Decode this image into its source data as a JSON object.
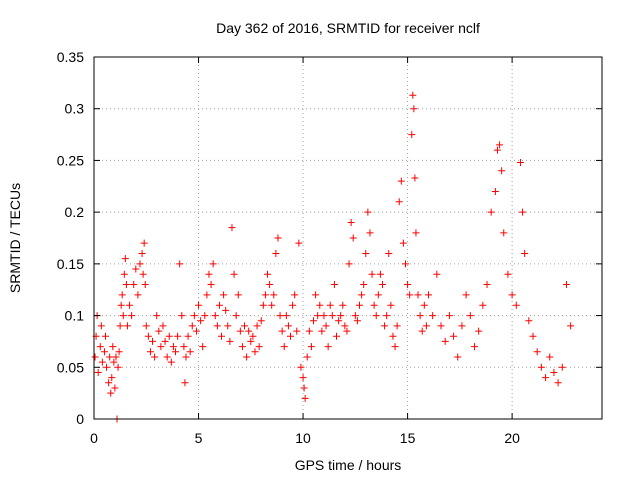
{
  "chart_data": {
    "type": "scatter",
    "title": "Day 362 of 2016, SRMTID for receiver nclf",
    "xlabel": "GPS time / hours",
    "ylabel": "SRMTID / TECUs",
    "xlim": [
      0,
      24.3
    ],
    "ylim": [
      0,
      0.35
    ],
    "x_ticks": [
      0,
      5,
      10,
      15,
      20
    ],
    "x_tick_labels": [
      "0",
      "5",
      "10",
      "15",
      "20"
    ],
    "y_ticks": [
      0,
      0.05,
      0.1,
      0.15,
      0.2,
      0.25,
      0.3,
      0.35
    ],
    "y_tick_labels": [
      "0",
      "0.05",
      "0.1",
      "0.15",
      "0.2",
      "0.25",
      "0.3",
      "0.35"
    ],
    "grid": true,
    "marker": "+",
    "color": "#ff0000",
    "series": [
      {
        "points": [
          [
            0.05,
            0.06
          ],
          [
            0.1,
            0.08
          ],
          [
            0.15,
            0.1
          ],
          [
            0.2,
            0.045
          ],
          [
            0.3,
            0.07
          ],
          [
            0.35,
            0.09
          ],
          [
            0.4,
            0.055
          ],
          [
            0.5,
            0.065
          ],
          [
            0.55,
            0.08
          ],
          [
            0.6,
            0.05
          ],
          [
            0.7,
            0.035
          ],
          [
            0.75,
            0.06
          ],
          [
            0.8,
            0.025
          ],
          [
            0.85,
            0.04
          ],
          [
            0.9,
            0.07
          ],
          [
            0.95,
            0.055
          ],
          [
            1.0,
            0.03
          ],
          [
            1.05,
            0.06
          ],
          [
            1.1,
            0.0
          ],
          [
            1.15,
            0.05
          ],
          [
            1.2,
            0.065
          ],
          [
            1.25,
            0.09
          ],
          [
            1.3,
            0.11
          ],
          [
            1.35,
            0.12
          ],
          [
            1.4,
            0.1
          ],
          [
            1.45,
            0.14
          ],
          [
            1.5,
            0.155
          ],
          [
            1.55,
            0.13
          ],
          [
            1.6,
            0.09
          ],
          [
            1.7,
            0.11
          ],
          [
            1.8,
            0.1
          ],
          [
            1.9,
            0.13
          ],
          [
            2.0,
            0.145
          ],
          [
            2.1,
            0.12
          ],
          [
            2.2,
            0.15
          ],
          [
            2.3,
            0.16
          ],
          [
            2.35,
            0.14
          ],
          [
            2.4,
            0.17
          ],
          [
            2.45,
            0.13
          ],
          [
            2.5,
            0.09
          ],
          [
            2.6,
            0.08
          ],
          [
            2.7,
            0.065
          ],
          [
            2.8,
            0.075
          ],
          [
            2.9,
            0.06
          ],
          [
            3.0,
            0.1
          ],
          [
            3.1,
            0.085
          ],
          [
            3.2,
            0.07
          ],
          [
            3.3,
            0.09
          ],
          [
            3.4,
            0.075
          ],
          [
            3.5,
            0.06
          ],
          [
            3.6,
            0.08
          ],
          [
            3.7,
            0.055
          ],
          [
            3.8,
            0.07
          ],
          [
            3.9,
            0.065
          ],
          [
            4.0,
            0.08
          ],
          [
            4.1,
            0.15
          ],
          [
            4.2,
            0.1
          ],
          [
            4.3,
            0.07
          ],
          [
            4.35,
            0.035
          ],
          [
            4.4,
            0.06
          ],
          [
            4.5,
            0.08
          ],
          [
            4.6,
            0.065
          ],
          [
            4.7,
            0.09
          ],
          [
            4.8,
            0.1
          ],
          [
            4.9,
            0.085
          ],
          [
            5.0,
            0.11
          ],
          [
            5.1,
            0.095
          ],
          [
            5.2,
            0.07
          ],
          [
            5.3,
            0.1
          ],
          [
            5.4,
            0.12
          ],
          [
            5.5,
            0.14
          ],
          [
            5.6,
            0.13
          ],
          [
            5.7,
            0.15
          ],
          [
            5.8,
            0.1
          ],
          [
            5.9,
            0.09
          ],
          [
            6.0,
            0.11
          ],
          [
            6.1,
            0.08
          ],
          [
            6.2,
            0.12
          ],
          [
            6.3,
            0.105
          ],
          [
            6.4,
            0.09
          ],
          [
            6.5,
            0.075
          ],
          [
            6.6,
            0.185
          ],
          [
            6.7,
            0.14
          ],
          [
            6.8,
            0.1
          ],
          [
            6.9,
            0.12
          ],
          [
            7.0,
            0.085
          ],
          [
            7.1,
            0.07
          ],
          [
            7.2,
            0.09
          ],
          [
            7.3,
            0.06
          ],
          [
            7.4,
            0.085
          ],
          [
            7.5,
            0.075
          ],
          [
            7.6,
            0.08
          ],
          [
            7.7,
            0.065
          ],
          [
            7.8,
            0.09
          ],
          [
            7.9,
            0.07
          ],
          [
            8.0,
            0.095
          ],
          [
            8.1,
            0.11
          ],
          [
            8.2,
            0.12
          ],
          [
            8.3,
            0.14
          ],
          [
            8.4,
            0.13
          ],
          [
            8.5,
            0.11
          ],
          [
            8.6,
            0.12
          ],
          [
            8.7,
            0.16
          ],
          [
            8.8,
            0.175
          ],
          [
            8.9,
            0.1
          ],
          [
            9.0,
            0.085
          ],
          [
            9.1,
            0.07
          ],
          [
            9.2,
            0.1
          ],
          [
            9.3,
            0.09
          ],
          [
            9.4,
            0.08
          ],
          [
            9.5,
            0.11
          ],
          [
            9.6,
            0.12
          ],
          [
            9.7,
            0.085
          ],
          [
            9.8,
            0.17
          ],
          [
            9.9,
            0.05
          ],
          [
            10.0,
            0.04
          ],
          [
            10.05,
            0.03
          ],
          [
            10.1,
            0.02
          ],
          [
            10.2,
            0.06
          ],
          [
            10.3,
            0.085
          ],
          [
            10.4,
            0.07
          ],
          [
            10.5,
            0.095
          ],
          [
            10.6,
            0.12
          ],
          [
            10.7,
            0.1
          ],
          [
            10.8,
            0.11
          ],
          [
            10.9,
            0.085
          ],
          [
            11.0,
            0.1
          ],
          [
            11.1,
            0.09
          ],
          [
            11.2,
            0.07
          ],
          [
            11.3,
            0.11
          ],
          [
            11.4,
            0.1
          ],
          [
            11.5,
            0.13
          ],
          [
            11.6,
            0.08
          ],
          [
            11.7,
            0.095
          ],
          [
            11.8,
            0.1
          ],
          [
            11.9,
            0.11
          ],
          [
            12.0,
            0.09
          ],
          [
            12.1,
            0.085
          ],
          [
            12.2,
            0.15
          ],
          [
            12.3,
            0.19
          ],
          [
            12.4,
            0.175
          ],
          [
            12.5,
            0.1
          ],
          [
            12.6,
            0.095
          ],
          [
            12.7,
            0.11
          ],
          [
            12.8,
            0.12
          ],
          [
            12.9,
            0.13
          ],
          [
            13.0,
            0.16
          ],
          [
            13.1,
            0.2
          ],
          [
            13.2,
            0.18
          ],
          [
            13.3,
            0.14
          ],
          [
            13.4,
            0.11
          ],
          [
            13.5,
            0.1
          ],
          [
            13.6,
            0.12
          ],
          [
            13.7,
            0.14
          ],
          [
            13.8,
            0.13
          ],
          [
            13.9,
            0.09
          ],
          [
            14.0,
            0.1
          ],
          [
            14.1,
            0.16
          ],
          [
            14.2,
            0.11
          ],
          [
            14.3,
            0.08
          ],
          [
            14.4,
            0.07
          ],
          [
            14.5,
            0.09
          ],
          [
            14.6,
            0.21
          ],
          [
            14.7,
            0.23
          ],
          [
            14.8,
            0.17
          ],
          [
            14.9,
            0.15
          ],
          [
            15.0,
            0.13
          ],
          [
            15.1,
            0.12
          ],
          [
            15.2,
            0.275
          ],
          [
            15.25,
            0.313
          ],
          [
            15.3,
            0.3
          ],
          [
            15.35,
            0.233
          ],
          [
            15.4,
            0.18
          ],
          [
            15.5,
            0.12
          ],
          [
            15.6,
            0.1
          ],
          [
            15.7,
            0.085
          ],
          [
            15.8,
            0.11
          ],
          [
            15.9,
            0.09
          ],
          [
            16.0,
            0.12
          ],
          [
            16.2,
            0.1
          ],
          [
            16.4,
            0.14
          ],
          [
            16.6,
            0.09
          ],
          [
            16.8,
            0.075
          ],
          [
            17.0,
            0.1
          ],
          [
            17.2,
            0.08
          ],
          [
            17.4,
            0.06
          ],
          [
            17.6,
            0.09
          ],
          [
            17.8,
            0.12
          ],
          [
            18.0,
            0.1
          ],
          [
            18.2,
            0.07
          ],
          [
            18.4,
            0.085
          ],
          [
            18.6,
            0.11
          ],
          [
            18.8,
            0.13
          ],
          [
            19.0,
            0.2
          ],
          [
            19.2,
            0.22
          ],
          [
            19.3,
            0.26
          ],
          [
            19.4,
            0.265
          ],
          [
            19.5,
            0.24
          ],
          [
            19.6,
            0.18
          ],
          [
            19.8,
            0.14
          ],
          [
            20.0,
            0.12
          ],
          [
            20.2,
            0.11
          ],
          [
            20.4,
            0.248
          ],
          [
            20.5,
            0.2
          ],
          [
            20.6,
            0.16
          ],
          [
            20.8,
            0.095
          ],
          [
            21.0,
            0.08
          ],
          [
            21.2,
            0.065
          ],
          [
            21.4,
            0.05
          ],
          [
            21.6,
            0.04
          ],
          [
            21.8,
            0.06
          ],
          [
            22.0,
            0.045
          ],
          [
            22.2,
            0.035
          ],
          [
            22.4,
            0.05
          ],
          [
            22.6,
            0.13
          ],
          [
            22.8,
            0.09
          ]
        ]
      }
    ]
  }
}
